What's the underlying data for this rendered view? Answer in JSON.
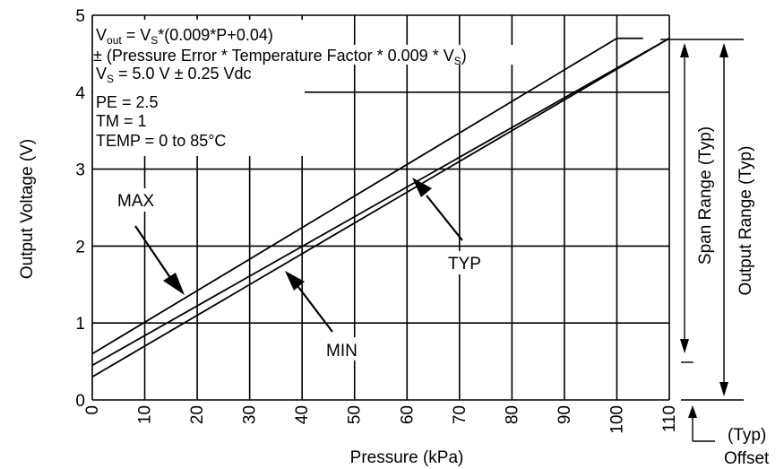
{
  "chart_data": {
    "type": "line",
    "xlabel": "Pressure (kPa)",
    "ylabel": "Output Voltage (V)",
    "xlim": [
      0,
      110
    ],
    "ylim": [
      0,
      5
    ],
    "x_ticks": [
      "0",
      "10",
      "20",
      "30",
      "40",
      "50",
      "60",
      "70",
      "80",
      "90",
      "100",
      "110"
    ],
    "y_ticks": [
      "0",
      "1",
      "2",
      "3",
      "4",
      "5"
    ],
    "grid": true,
    "series": [
      {
        "name": "MAX",
        "x": [
          0,
          100,
          105
        ],
        "y": [
          0.6,
          4.7,
          4.7
        ]
      },
      {
        "name": "TYP",
        "x": [
          0,
          110
        ],
        "y": [
          0.45,
          4.7
        ]
      },
      {
        "name": "MIN",
        "x": [
          0,
          110
        ],
        "y": [
          0.3,
          4.7
        ]
      }
    ],
    "equation_lines": [
      "V",
      "out",
      " = V",
      "S",
      "*(0.009*P+0.04)",
      "± (Pressure Error * Temperature Factor * 0.009 * V",
      "S",
      ")",
      "V",
      "S",
      " = 5.0 V ± 0.25 Vdc",
      "PE = 2.5",
      "TM = 1",
      "TEMP = 0 to 85°C"
    ],
    "annotations": {
      "max": "MAX",
      "typ": "TYP",
      "min": "MIN",
      "span": "Span Range (Typ)",
      "output": "Output Range (Typ)",
      "offset_typ": "(Typ)",
      "offset": "Offset"
    }
  }
}
